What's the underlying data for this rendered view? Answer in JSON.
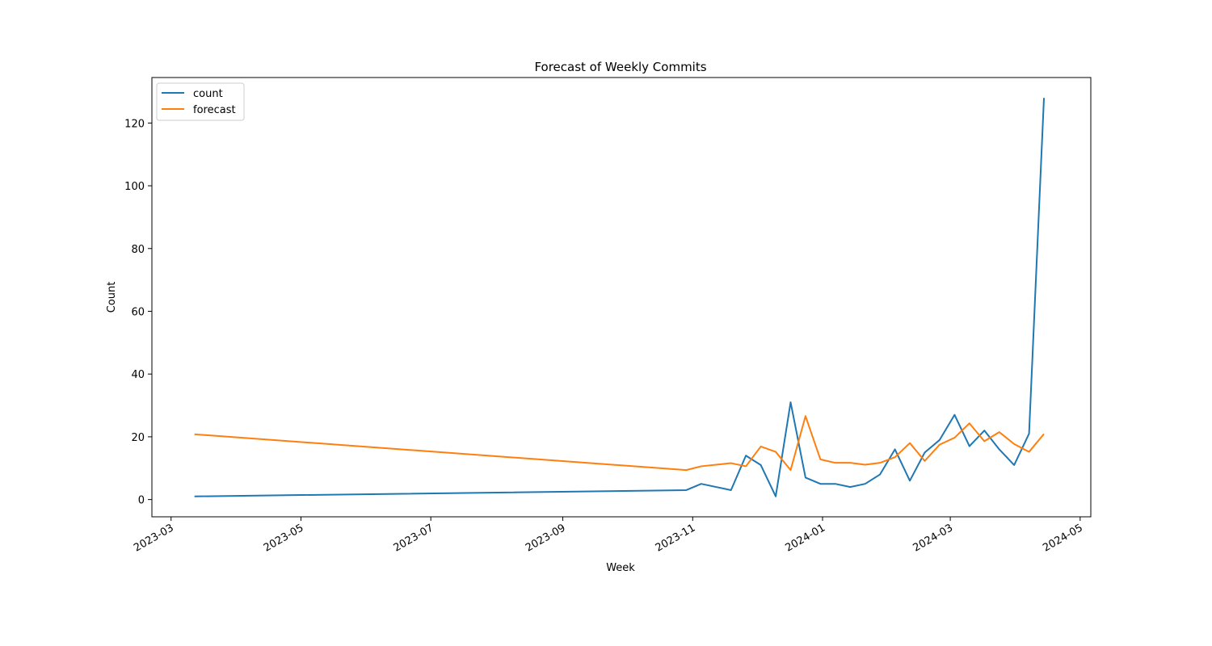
{
  "chart_data": {
    "type": "line",
    "title": "Forecast of Weekly Commits",
    "xlabel": "Week",
    "ylabel": "Count",
    "x_axis_type": "date",
    "xlim": [
      "2023-02-20",
      "2024-05-06"
    ],
    "ylim": [
      -5.5,
      134.5
    ],
    "x_ticks": [
      "2023-03",
      "2023-05",
      "2023-07",
      "2023-09",
      "2023-11",
      "2024-01",
      "2024-03",
      "2024-05"
    ],
    "y_ticks": [
      0,
      20,
      40,
      60,
      80,
      100,
      120
    ],
    "grid": false,
    "legend_position": "top-left",
    "x": [
      "2023-03-12",
      "2023-10-29",
      "2023-11-05",
      "2023-11-19",
      "2023-11-26",
      "2023-12-03",
      "2023-12-10",
      "2023-12-17",
      "2023-12-24",
      "2023-12-31",
      "2024-01-07",
      "2024-01-14",
      "2024-01-21",
      "2024-01-28",
      "2024-02-04",
      "2024-02-11",
      "2024-02-18",
      "2024-02-25",
      "2024-03-03",
      "2024-03-10",
      "2024-03-17",
      "2024-03-24",
      "2024-03-31",
      "2024-04-07",
      "2024-04-14"
    ],
    "series": [
      {
        "name": "count",
        "color": "#1f77b4",
        "values": [
          1,
          3,
          5,
          3,
          14,
          11,
          1,
          31,
          7,
          5,
          5,
          4,
          5,
          8,
          16,
          6,
          15,
          19,
          27,
          17,
          22,
          16,
          11,
          21,
          128
        ]
      },
      {
        "name": "forecast",
        "color": "#ff7f0e",
        "values": [
          20.8,
          9.4,
          10.6,
          11.6,
          10.6,
          16.9,
          15.2,
          9.4,
          26.6,
          12.8,
          11.7,
          11.7,
          11.1,
          11.7,
          13.5,
          18.0,
          12.3,
          17.5,
          19.7,
          24.3,
          18.6,
          21.5,
          17.7,
          15.2,
          20.9
        ]
      }
    ]
  }
}
